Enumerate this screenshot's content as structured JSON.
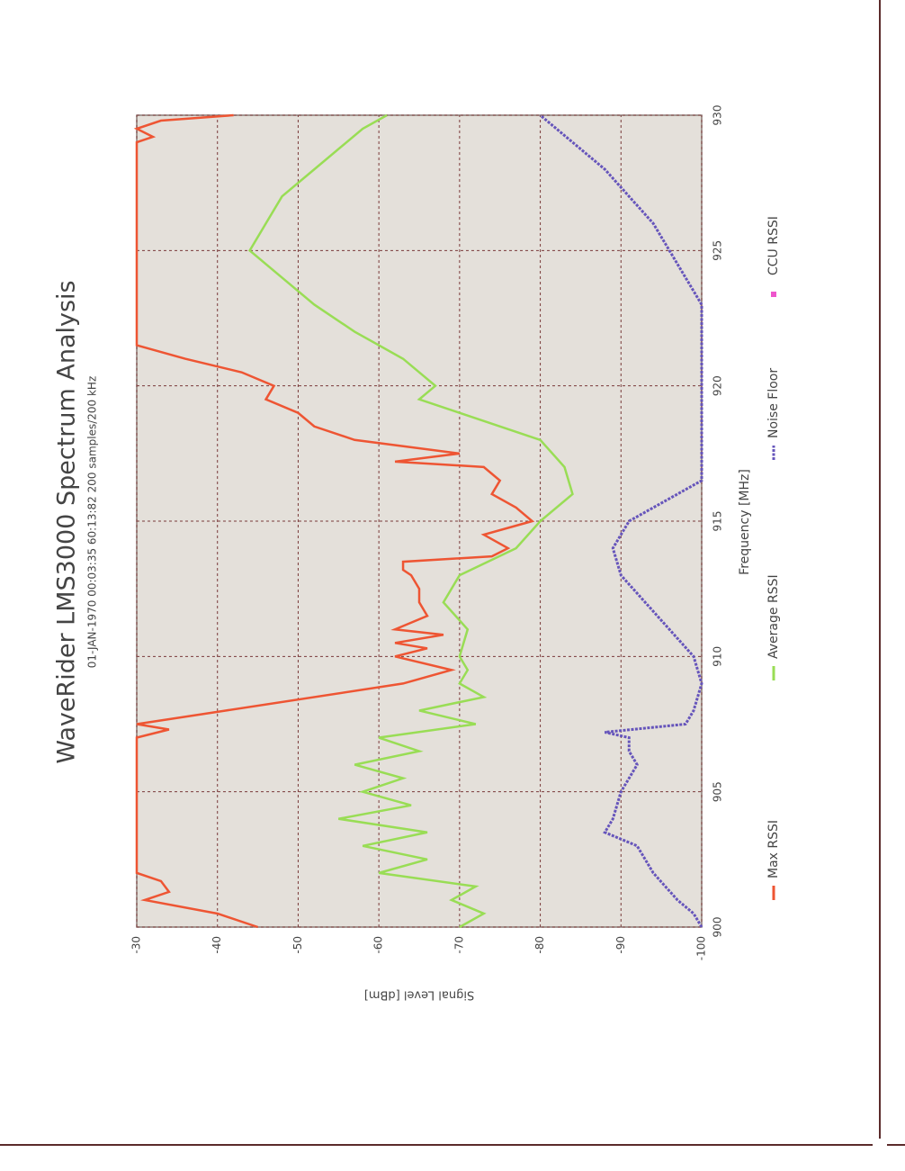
{
  "chart_data": {
    "type": "line",
    "title": "WaveRider LMS3000 Spectrum Analysis",
    "subtitle": "01-JAN-1970 00:03:35   60:13:82   200 samples/200 kHz",
    "xlabel": "Frequency [MHz]",
    "ylabel": "Signal Level [dBm]",
    "xlim": [
      900,
      930
    ],
    "xticks": [
      900,
      905,
      910,
      915,
      920,
      925,
      930
    ],
    "ylim": [
      -100,
      -30
    ],
    "yticks": [
      -100,
      -90,
      -80,
      -70,
      -60,
      -50,
      -40,
      -30
    ],
    "grid": true,
    "series": [
      {
        "name": "Max RSSI",
        "color": "#ee5533",
        "line_style": "solid",
        "x": [
          900,
          900.5,
          901,
          901.3,
          901.7,
          902,
          904,
          907,
          907.3,
          907.5,
          908,
          909,
          909.5,
          910,
          910.3,
          910.5,
          910.8,
          911,
          911.5,
          912,
          912.5,
          913,
          913.2,
          913.5,
          913.7,
          914,
          914.5,
          915,
          915.5,
          916,
          916.5,
          917,
          917.2,
          917.5,
          918,
          918.5,
          919,
          919.5,
          920,
          920.5,
          921,
          921.5,
          925,
          929,
          929.2,
          929.5,
          929.8,
          930
        ],
        "values": [
          -45,
          -40,
          -31,
          -34,
          -33,
          -30,
          -30,
          -30,
          -34,
          -30,
          -41,
          -63,
          -69,
          -62,
          -66,
          -62,
          -68,
          -62,
          -66,
          -65,
          -65,
          -64,
          -63,
          -63,
          -74,
          -76,
          -73,
          -79,
          -77,
          -74,
          -75,
          -73,
          -62,
          -70,
          -57,
          -52,
          -50,
          -46,
          -47,
          -43,
          -36,
          -30,
          -30,
          -30,
          -32,
          -30,
          -33,
          -42
        ]
      },
      {
        "name": "Average RSSI",
        "color": "#99dd55",
        "line_style": "solid",
        "x": [
          900,
          900.5,
          901,
          901.5,
          902,
          902.5,
          903,
          903.5,
          904,
          904.5,
          905,
          905.5,
          906,
          906.5,
          907,
          907.5,
          908,
          908.5,
          909,
          909.5,
          910,
          911,
          912,
          913,
          914,
          915,
          916,
          917,
          918,
          919,
          919.5,
          920,
          921,
          922,
          923,
          924,
          925,
          926,
          927,
          928,
          929,
          929.5,
          930
        ],
        "values": [
          -70,
          -73,
          -69,
          -72,
          -60,
          -66,
          -58,
          -66,
          -55,
          -64,
          -58,
          -63,
          -57,
          -65,
          -60,
          -72,
          -65,
          -73,
          -70,
          -71,
          -70,
          -71,
          -68,
          -70,
          -77,
          -80,
          -84,
          -83,
          -80,
          -70,
          -65,
          -67,
          -63,
          -57,
          -52,
          -48,
          -44,
          -46,
          -48,
          -52,
          -56,
          -58,
          -61
        ]
      },
      {
        "name": "Noise Floor",
        "color": "#6655bb",
        "line_style": "dashed",
        "x": [
          900,
          900.5,
          901,
          902,
          903,
          903.5,
          904,
          905,
          906,
          906.5,
          907,
          907.2,
          907.5,
          908,
          909,
          910,
          911,
          912,
          913,
          914,
          915,
          916,
          916.5,
          917,
          920,
          923,
          924,
          925,
          926,
          927,
          928,
          929,
          930
        ],
        "values": [
          -100,
          -99,
          -97,
          -94,
          -92,
          -88,
          -89,
          -90,
          -92,
          -91,
          -91,
          -88,
          -98,
          -99,
          -100,
          -99,
          -96,
          -93,
          -90,
          -89,
          -91,
          -97,
          -100,
          -100,
          -100,
          -100,
          -98,
          -96,
          -94,
          -91,
          -88,
          -84,
          -80
        ]
      },
      {
        "name": "CCU RSSI",
        "color": "#ee55cc",
        "line_style": "square",
        "x": [],
        "values": []
      }
    ]
  }
}
